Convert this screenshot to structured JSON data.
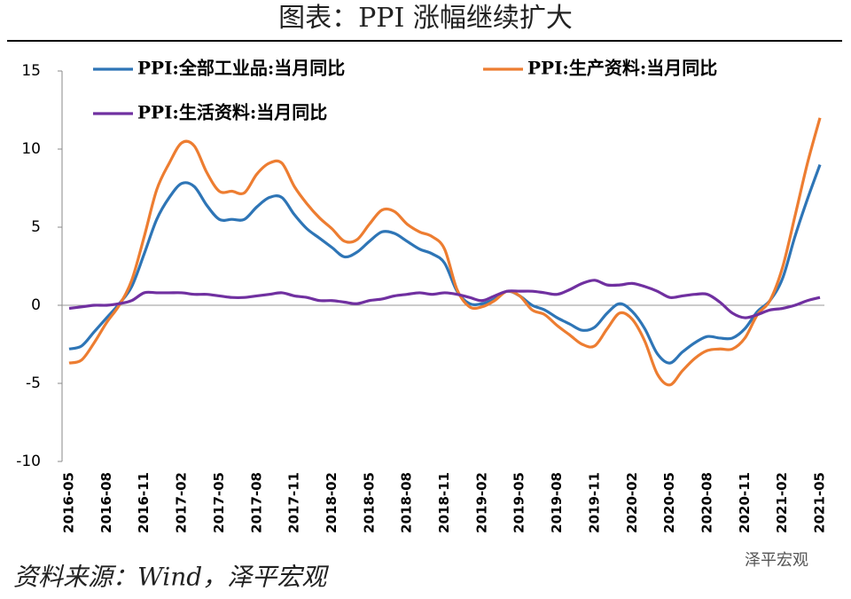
{
  "chart_data": {
    "type": "line",
    "title": "图表：PPI 涨幅继续扩大",
    "source": "资料来源：Wind，泽平宏观",
    "watermark": "泽平宏观",
    "categories": [
      "2016-05",
      null,
      null,
      "2016-08",
      null,
      null,
      "2016-11",
      null,
      null,
      "2017-02",
      null,
      null,
      "2017-05",
      null,
      null,
      "2017-08",
      null,
      null,
      "2017-11",
      null,
      null,
      "2018-02",
      null,
      null,
      "2018-05",
      null,
      null,
      "2018-08",
      null,
      null,
      "2018-11",
      null,
      null,
      "2019-02",
      null,
      null,
      "2019-05",
      null,
      null,
      "2019-08",
      null,
      null,
      "2019-11",
      null,
      null,
      "2020-02",
      null,
      null,
      "2020-05",
      null,
      null,
      "2020-08",
      null,
      null,
      "2020-11",
      null,
      null,
      "2021-02",
      null,
      null,
      "2021-05"
    ],
    "series": [
      {
        "name": "PPI:全部工业品:当月同比",
        "color": "#2e75b6",
        "values": [
          -2.8,
          -2.6,
          -1.7,
          -0.8,
          0.1,
          1.2,
          3.3,
          5.5,
          6.9,
          7.8,
          7.6,
          6.4,
          5.5,
          5.5,
          5.5,
          6.3,
          6.9,
          6.9,
          5.8,
          4.9,
          4.3,
          3.7,
          3.1,
          3.4,
          4.1,
          4.7,
          4.6,
          4.1,
          3.6,
          3.3,
          2.7,
          0.9,
          0.1,
          0.1,
          0.4,
          0.9,
          0.6,
          0.0,
          -0.3,
          -0.8,
          -1.2,
          -1.6,
          -1.4,
          -0.5,
          0.1,
          -0.4,
          -1.5,
          -3.1,
          -3.7,
          -3.0,
          -2.4,
          -2.0,
          -2.1,
          -2.1,
          -1.5,
          -0.4,
          0.3,
          1.7,
          4.4,
          6.8,
          9.0
        ]
      },
      {
        "name": "PPI:生产资料:当月同比",
        "color": "#ed7d31",
        "values": [
          -3.7,
          -3.5,
          -2.4,
          -1.1,
          0.0,
          1.6,
          4.4,
          7.4,
          9.1,
          10.4,
          10.2,
          8.5,
          7.3,
          7.3,
          7.2,
          8.4,
          9.1,
          9.1,
          7.6,
          6.5,
          5.6,
          4.9,
          4.1,
          4.2,
          5.2,
          6.1,
          6.0,
          5.2,
          4.7,
          4.4,
          3.6,
          1.0,
          -0.1,
          -0.1,
          0.3,
          0.9,
          0.6,
          -0.3,
          -0.6,
          -1.3,
          -1.9,
          -2.5,
          -2.6,
          -1.5,
          -0.5,
          -0.9,
          -2.3,
          -4.4,
          -5.1,
          -4.2,
          -3.4,
          -2.9,
          -2.8,
          -2.8,
          -2.1,
          -0.6,
          0.3,
          2.4,
          5.7,
          9.1,
          12.0
        ]
      },
      {
        "name": "PPI:生活资料:当月同比",
        "color": "#7030a0",
        "values": [
          -0.2,
          -0.1,
          0.0,
          0.0,
          0.1,
          0.3,
          0.8,
          0.8,
          0.8,
          0.8,
          0.7,
          0.7,
          0.6,
          0.5,
          0.5,
          0.6,
          0.7,
          0.8,
          0.6,
          0.5,
          0.3,
          0.3,
          0.2,
          0.1,
          0.3,
          0.4,
          0.6,
          0.7,
          0.8,
          0.7,
          0.8,
          0.7,
          0.5,
          0.3,
          0.6,
          0.9,
          0.9,
          0.9,
          0.8,
          0.7,
          1.0,
          1.4,
          1.6,
          1.3,
          1.3,
          1.4,
          1.2,
          0.9,
          0.5,
          0.6,
          0.7,
          0.7,
          0.2,
          -0.5,
          -0.8,
          -0.6,
          -0.3,
          -0.2,
          0.0,
          0.3,
          0.5
        ]
      }
    ],
    "ylim": [
      -10,
      15
    ],
    "yticks": [
      -10,
      -5,
      0,
      5,
      10,
      15
    ],
    "grid": false
  }
}
